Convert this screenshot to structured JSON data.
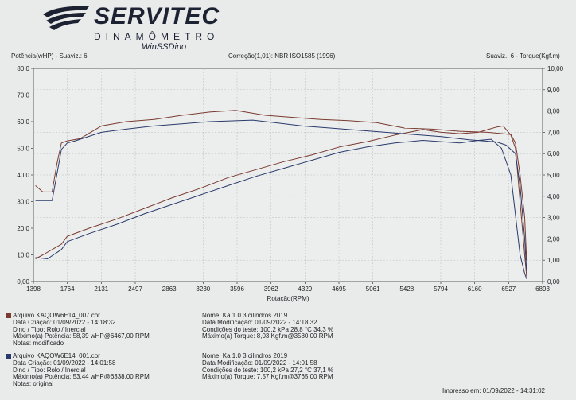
{
  "brand": {
    "name": "SERVITEC",
    "subtitle": "DINAMÔMETRO",
    "software": "WinSSDino"
  },
  "header": {
    "left": "Potência(wHP) - Suaviz.: 6",
    "center": "Correção(1,01): NBR ISO1585 (1996)",
    "right": "Suaviz.: 6 - Torque(Kgf.m)"
  },
  "colors": {
    "run1": "#7a3a30",
    "run2": "#2a3a6b",
    "grid": "#b9bcc0",
    "axis": "#333338"
  },
  "chart_data": {
    "type": "line",
    "xlabel": "Rotação(RPM)",
    "ylabel_left": "Potência(wHP)",
    "ylabel_right": "Torque(Kgf.m)",
    "x_ticks": [
      "1398",
      "1764",
      "2131",
      "2497",
      "2863",
      "3230",
      "3596",
      "3962",
      "4329",
      "4695",
      "5061",
      "5428",
      "5794",
      "6160",
      "6527",
      "6893"
    ],
    "y_left_ticks": [
      "0,00",
      "10,0",
      "20,0",
      "30,0",
      "40,0",
      "50,0",
      "60,0",
      "70,0",
      "80,0"
    ],
    "y_right_ticks": [
      "0,00",
      "1,00",
      "2,00",
      "3,00",
      "4,00",
      "5,00",
      "6,00",
      "7,00",
      "8,00",
      "9,00",
      "10,00"
    ],
    "xlim": [
      1398,
      6893
    ],
    "ylim_left": [
      0,
      80
    ],
    "ylim_right": [
      0,
      10
    ],
    "series": [
      {
        "name": "KAQOW6E14_007.cor - Potência",
        "axis": "left",
        "color": "#7a3a30",
        "x": [
          1420,
          1500,
          1600,
          1700,
          1764,
          2000,
          2300,
          2600,
          2900,
          3200,
          3500,
          3800,
          4100,
          4400,
          4700,
          5000,
          5300,
          5600,
          5800,
          6000,
          6200,
          6300,
          6400,
          6467,
          6550,
          6600,
          6650,
          6700,
          6720
        ],
        "y": [
          8.5,
          10,
          12,
          14,
          17,
          20,
          23.5,
          27.5,
          31.5,
          35,
          39,
          42,
          45,
          47.5,
          50.5,
          52.5,
          55,
          57,
          56,
          55.5,
          56,
          57,
          58,
          58.4,
          55,
          50,
          30,
          10,
          2
        ]
      },
      {
        "name": "KAQOW6E14_007.cor - Torque",
        "axis": "right",
        "color": "#7a3a30",
        "x": [
          1420,
          1500,
          1600,
          1650,
          1700,
          1764,
          1900,
          2131,
          2400,
          2700,
          3000,
          3300,
          3580,
          3900,
          4200,
          4500,
          4800,
          5100,
          5400,
          5700,
          6000,
          6300,
          6550,
          6600,
          6650,
          6700,
          6720
        ],
        "y": [
          4.5,
          4.2,
          4.2,
          5.5,
          6.5,
          6.6,
          6.7,
          7.3,
          7.5,
          7.6,
          7.8,
          7.95,
          8.03,
          7.8,
          7.7,
          7.6,
          7.55,
          7.45,
          7.2,
          7.15,
          7.05,
          7.0,
          6.9,
          6.5,
          5.0,
          3.0,
          1.0
        ]
      },
      {
        "name": "KAQOW6E14_001.cor - Potência",
        "axis": "left",
        "color": "#2a3a6b",
        "x": [
          1420,
          1550,
          1700,
          1764,
          2000,
          2300,
          2600,
          2900,
          3200,
          3500,
          3800,
          4100,
          4400,
          4700,
          5000,
          5300,
          5600,
          5800,
          6000,
          6200,
          6338,
          6450,
          6550,
          6600,
          6650,
          6700,
          6720
        ],
        "y": [
          9,
          8.5,
          12,
          15,
          18,
          21.5,
          25.5,
          29,
          32.5,
          36,
          39.5,
          42.5,
          45.5,
          48.5,
          50.5,
          52,
          53,
          52.5,
          52,
          53,
          53.4,
          50,
          40,
          25,
          10,
          3,
          1
        ]
      },
      {
        "name": "KAQOW6E14_001.cor - Torque",
        "axis": "right",
        "color": "#2a3a6b",
        "x": [
          1420,
          1500,
          1600,
          1650,
          1700,
          1764,
          1850,
          2131,
          2400,
          2700,
          3000,
          3300,
          3765,
          4000,
          4300,
          4600,
          4900,
          5200,
          5500,
          5800,
          6100,
          6400,
          6500,
          6600,
          6650,
          6700,
          6720
        ],
        "y": [
          3.8,
          3.8,
          3.8,
          5.0,
          6.2,
          6.5,
          6.6,
          7.0,
          7.15,
          7.3,
          7.4,
          7.5,
          7.57,
          7.45,
          7.3,
          7.2,
          7.1,
          7.0,
          6.9,
          6.8,
          6.65,
          6.55,
          6.4,
          6.0,
          4.5,
          2.0,
          0.5
        ]
      }
    ]
  },
  "runs": [
    {
      "color": "#7a3a30",
      "arquivo": "Arquivo    KAQOW6E14_007.cor",
      "data_criacao": "Data Criação:  01/09/2022 - 14:18:32",
      "dino_tipo": "Dino / Tipo:  Rolo  /  Inercial",
      "max_potencia": "Máximo(a)  Potência:   58,39 wHP@6467,00 RPM",
      "notas": "Notas:  modificado",
      "nome": "Nome:     Ka 1.0 3 cilindros 2019",
      "data_modificacao": "Data Modificação:   01/09/2022 - 14:18:32",
      "condicoes": "Condições do teste:    100,2  kPa   28,8  °C   34,3 %",
      "max_torque": "Máximo(a)  Torque:   8,03 Kgf.m@3580,00 RPM"
    },
    {
      "color": "#2a3a6b",
      "arquivo": "Arquivo    KAQOW6E14_001.cor",
      "data_criacao": "Data Criação:  01/09/2022 - 14:01:58",
      "dino_tipo": "Dino / Tipo:  Rolo  /  Inercial",
      "max_potencia": "Máximo(a)  Potência:  53,44 wHP@6338,00 RPM",
      "notas": "Notas:  original",
      "nome": "Nome:     Ka 1.0 3 cilindros 2019",
      "data_modificacao": "Data Modificação:   01/09/2022 - 14:01:58",
      "condicoes": "Condições do teste:    100,2  kPa   27,2  °C   37,1 %",
      "max_torque": "Máximo(a)  Torque:   7,57 Kgf.m@3765,00 RPM"
    }
  ],
  "footer": {
    "printed": "Impresso em: 01/09/2022 - 14:31:02"
  }
}
